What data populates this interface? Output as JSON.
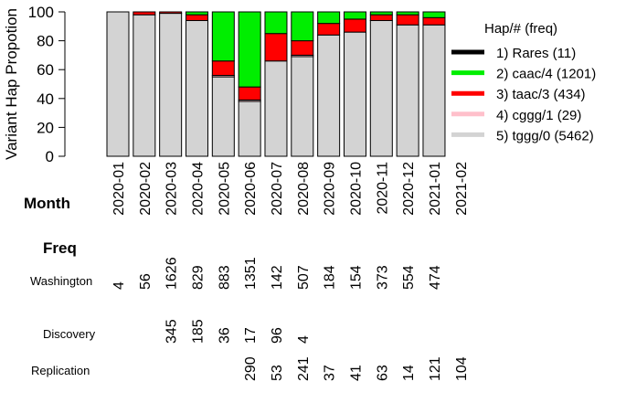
{
  "chart_data": {
    "type": "bar",
    "stacked": true,
    "ylabel": "Variant Hap Propotion",
    "ylim": [
      0,
      100
    ],
    "yticks": [
      0,
      20,
      40,
      60,
      80,
      100
    ],
    "legend_title": "Hap/# (freq)",
    "legend_placement": "right",
    "categories": [
      "2020-01",
      "2020-02",
      "2020-03",
      "2020-04",
      "2020-05",
      "2020-06",
      "2020-07",
      "2020-08",
      "2020-09",
      "2020-10",
      "2020-11",
      "2020-12",
      "2021-01",
      "2021-02"
    ],
    "series": [
      {
        "name": "1) Rares (11)",
        "color": "#000000",
        "values": [
          0,
          0,
          0,
          0,
          0,
          0,
          0,
          0,
          0,
          0,
          0,
          0,
          0,
          0
        ]
      },
      {
        "name": "2) caac/4 (1201)",
        "color": "#00ee00",
        "values": [
          0,
          0,
          0,
          2,
          34,
          52,
          15,
          20,
          8,
          5,
          2,
          2,
          4,
          0
        ]
      },
      {
        "name": "3) taac/3 (434)",
        "color": "#ff0000",
        "values": [
          0,
          2,
          1,
          4,
          10,
          9,
          19,
          10,
          8,
          9,
          4,
          7,
          5,
          0
        ]
      },
      {
        "name": "4) cggg/1 (29)",
        "color": "#ffc0cb",
        "values": [
          0,
          0,
          0,
          0,
          1,
          1,
          0,
          1,
          0,
          0,
          0,
          0,
          0,
          0
        ]
      },
      {
        "name": "5) tggg/0 (5462)",
        "color": "#d3d3d3",
        "values": [
          100,
          98,
          99,
          94,
          55,
          38,
          66,
          69,
          84,
          86,
          94,
          91,
          91,
          0
        ]
      }
    ]
  },
  "table": {
    "month_label": "Month",
    "freq_label": "Freq",
    "rows": [
      {
        "label": "Washington",
        "values": [
          "4",
          "56",
          "1626",
          "829",
          "883",
          "1351",
          "142",
          "507",
          "184",
          "154",
          "373",
          "554",
          "474",
          ""
        ]
      },
      {
        "label": "Discovery",
        "values": [
          "",
          "",
          "345",
          "185",
          "36",
          "17",
          "96",
          "4",
          "",
          "",
          "",
          "",
          "",
          ""
        ]
      },
      {
        "label": "Replication",
        "values": [
          "",
          "",
          "",
          "",
          "",
          "290",
          "53",
          "241",
          "37",
          "41",
          "63",
          "14",
          "121",
          "104"
        ]
      }
    ]
  }
}
